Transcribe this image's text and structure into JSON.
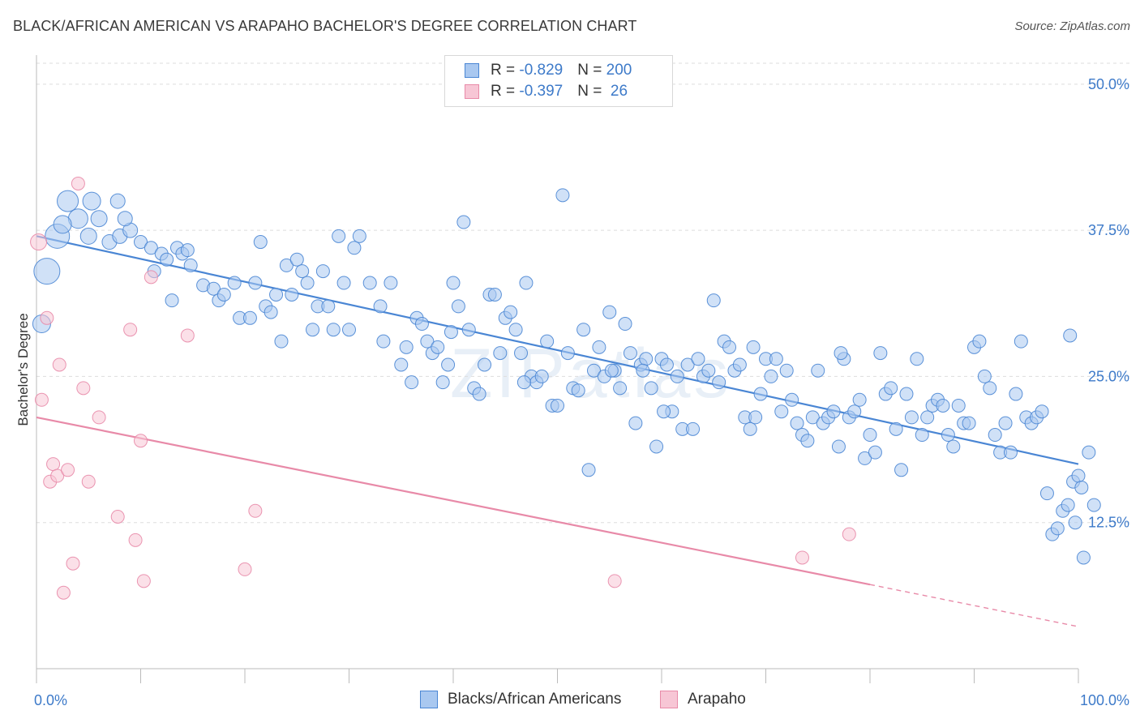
{
  "title": "BLACK/AFRICAN AMERICAN VS ARAPAHO BACHELOR'S DEGREE CORRELATION CHART",
  "source": "Source: ZipAtlas.com",
  "watermark": {
    "a": "ZIP",
    "b": "atlas"
  },
  "legend": {
    "rows": [
      {
        "r_label": "R = ",
        "r_value": "-0.829",
        "n_label": "N = ",
        "n_value": "200",
        "color": "#4a86d4",
        "fill": "#a9c8f0"
      },
      {
        "r_label": "R = ",
        "r_value": "-0.397",
        "n_label": "N = ",
        "n_value": " 26",
        "color": "#e88aa8",
        "fill": "#f7c6d5"
      }
    ]
  },
  "bottom_legend": [
    "Blacks/African Americans",
    "Arapaho"
  ],
  "chart_data": {
    "type": "scatter",
    "title": "BLACK/AFRICAN AMERICAN VS ARAPAHO BACHELOR'S DEGREE CORRELATION CHART",
    "xlabel": "",
    "ylabel": "Bachelor's Degree",
    "xlim": [
      0,
      100
    ],
    "ylim": [
      0,
      52
    ],
    "x_tick_labels": [
      "0.0%",
      "100.0%"
    ],
    "y_ticks": [
      12.5,
      25.0,
      37.5,
      50.0
    ],
    "y_tick_labels": [
      "12.5%",
      "25.0%",
      "37.5%",
      "50.0%"
    ],
    "series": [
      {
        "name": "Blacks/African Americans",
        "color": "#4a86d4",
        "fill": "#a9c8f0",
        "trend": {
          "x0": 0,
          "y0": 37.0,
          "x1": 100,
          "y1": 17.5
        },
        "points": [
          [
            1,
            34,
            16
          ],
          [
            2,
            37,
            15
          ],
          [
            3,
            40,
            13
          ],
          [
            4,
            38.5,
            12
          ],
          [
            5,
            37,
            10
          ],
          [
            6,
            38.5,
            10
          ],
          [
            7,
            36.5,
            9
          ],
          [
            8,
            37,
            9
          ],
          [
            9,
            37.5,
            9
          ],
          [
            10,
            36.5,
            8
          ],
          [
            0.5,
            29.5,
            11
          ],
          [
            2.5,
            38,
            11
          ],
          [
            5.3,
            40,
            11
          ],
          [
            7.8,
            40,
            9
          ],
          [
            8.5,
            38.5,
            9
          ],
          [
            11,
            36,
            8
          ],
          [
            11.3,
            34,
            8
          ],
          [
            12,
            35.5,
            8
          ],
          [
            12.5,
            35,
            8
          ],
          [
            13,
            31.5,
            8
          ],
          [
            13.5,
            36,
            8
          ],
          [
            14,
            35.5,
            8
          ],
          [
            14.5,
            35.8,
            8
          ],
          [
            16,
            32.8,
            8
          ],
          [
            17,
            32.5,
            8
          ],
          [
            14.8,
            34.5,
            8
          ],
          [
            17.5,
            31.5,
            8
          ],
          [
            18,
            32,
            8
          ],
          [
            19,
            33,
            8
          ],
          [
            19.5,
            30,
            8
          ],
          [
            20.5,
            30,
            8
          ],
          [
            21,
            33,
            8
          ],
          [
            21.5,
            36.5,
            8
          ],
          [
            22,
            31,
            8
          ],
          [
            22.5,
            30.5,
            8
          ],
          [
            23,
            32,
            8
          ],
          [
            23.5,
            28,
            8
          ],
          [
            24,
            34.5,
            8
          ],
          [
            24.5,
            32,
            8
          ],
          [
            25,
            35,
            8
          ],
          [
            25.5,
            34,
            8
          ],
          [
            26,
            33,
            8
          ],
          [
            26.5,
            29,
            8
          ],
          [
            27,
            31,
            8
          ],
          [
            27.5,
            34,
            8
          ],
          [
            28,
            31,
            8
          ],
          [
            28.5,
            29,
            8
          ],
          [
            29,
            37,
            8
          ],
          [
            29.5,
            33,
            8
          ],
          [
            30,
            29,
            8
          ],
          [
            30.5,
            36,
            8
          ],
          [
            31,
            37,
            8
          ],
          [
            32,
            33,
            8
          ],
          [
            33,
            31,
            8
          ],
          [
            34,
            33,
            8
          ],
          [
            35,
            26,
            8
          ],
          [
            35.5,
            27.5,
            8
          ],
          [
            36,
            24.5,
            8
          ],
          [
            36.5,
            30,
            8
          ],
          [
            37,
            29.5,
            8
          ],
          [
            37.5,
            28,
            8
          ],
          [
            38,
            27,
            8
          ],
          [
            38.5,
            27.5,
            8
          ],
          [
            39,
            24.5,
            8
          ],
          [
            39.5,
            26,
            8
          ],
          [
            40,
            33,
            8
          ],
          [
            40.5,
            31,
            8
          ],
          [
            41,
            38.2,
            8
          ],
          [
            41.5,
            29,
            8
          ],
          [
            42,
            24,
            8
          ],
          [
            42.5,
            23.5,
            8
          ],
          [
            43,
            26,
            8
          ],
          [
            43.5,
            32,
            8
          ],
          [
            44,
            32,
            8
          ],
          [
            44.5,
            27,
            8
          ],
          [
            45,
            30,
            8
          ],
          [
            45.5,
            30.5,
            8
          ],
          [
            46,
            29,
            8
          ],
          [
            46.5,
            27,
            8
          ],
          [
            47,
            33,
            8
          ],
          [
            47.5,
            25,
            8
          ],
          [
            48,
            24.5,
            8
          ],
          [
            48.5,
            25,
            8
          ],
          [
            49,
            28,
            8
          ],
          [
            49.5,
            22.5,
            8
          ],
          [
            50,
            22.5,
            8
          ],
          [
            50.5,
            40.5,
            8
          ],
          [
            51,
            27,
            8
          ],
          [
            51.5,
            24,
            8
          ],
          [
            52,
            23.8,
            8
          ],
          [
            52.5,
            29,
            8
          ],
          [
            53,
            17,
            8
          ],
          [
            53.5,
            25.5,
            8
          ],
          [
            54,
            27.5,
            8
          ],
          [
            54.5,
            25,
            8
          ],
          [
            55,
            30.5,
            8
          ],
          [
            55.5,
            25.5,
            8
          ],
          [
            56,
            24,
            8
          ],
          [
            56.5,
            29.5,
            8
          ],
          [
            57,
            27,
            8
          ],
          [
            57.5,
            21,
            8
          ],
          [
            58,
            26,
            8
          ],
          [
            58.5,
            26.5,
            8
          ],
          [
            59,
            24,
            8
          ],
          [
            59.5,
            19,
            8
          ],
          [
            60,
            26.5,
            8
          ],
          [
            60.5,
            26,
            8
          ],
          [
            61,
            22,
            8
          ],
          [
            61.5,
            25,
            8
          ],
          [
            62,
            20.5,
            8
          ],
          [
            62.5,
            26,
            8
          ],
          [
            63,
            20.5,
            8
          ],
          [
            63.5,
            26.5,
            8
          ],
          [
            64,
            25,
            8
          ],
          [
            64.5,
            25.5,
            8
          ],
          [
            65,
            31.5,
            8
          ],
          [
            65.5,
            24.5,
            8
          ],
          [
            66,
            28,
            8
          ],
          [
            66.5,
            27.5,
            8
          ],
          [
            67,
            25.5,
            8
          ],
          [
            67.5,
            26,
            8
          ],
          [
            68,
            21.5,
            8
          ],
          [
            68.5,
            20.5,
            8
          ],
          [
            69,
            21.5,
            8
          ],
          [
            69.5,
            23.5,
            8
          ],
          [
            70,
            26.5,
            8
          ],
          [
            70.5,
            25,
            8
          ],
          [
            71,
            26.5,
            8
          ],
          [
            71.5,
            22,
            8
          ],
          [
            72,
            25.5,
            8
          ],
          [
            72.5,
            23,
            8
          ],
          [
            73,
            21,
            8
          ],
          [
            73.5,
            20,
            8
          ],
          [
            74,
            19.5,
            8
          ],
          [
            74.5,
            21.5,
            8
          ],
          [
            75,
            25.5,
            8
          ],
          [
            75.5,
            21,
            8
          ],
          [
            76,
            21.5,
            8
          ],
          [
            76.5,
            22,
            8
          ],
          [
            77,
            19,
            8
          ],
          [
            77.5,
            26.5,
            8
          ],
          [
            78,
            21.5,
            8
          ],
          [
            78.5,
            22,
            8
          ],
          [
            79,
            23,
            8
          ],
          [
            79.5,
            18,
            8
          ],
          [
            80,
            20,
            8
          ],
          [
            80.5,
            18.5,
            8
          ],
          [
            81,
            27,
            8
          ],
          [
            81.5,
            23.5,
            8
          ],
          [
            82,
            24,
            8
          ],
          [
            82.5,
            20.5,
            8
          ],
          [
            83,
            17,
            8
          ],
          [
            83.5,
            23.5,
            8
          ],
          [
            84,
            21.5,
            8
          ],
          [
            84.5,
            26.5,
            8
          ],
          [
            85,
            20,
            8
          ],
          [
            85.5,
            21.5,
            8
          ],
          [
            86,
            22.5,
            8
          ],
          [
            86.5,
            23,
            8
          ],
          [
            87,
            22.5,
            8
          ],
          [
            87.5,
            20,
            8
          ],
          [
            88,
            19,
            8
          ],
          [
            88.5,
            22.5,
            8
          ],
          [
            89,
            21,
            8
          ],
          [
            89.5,
            21,
            8
          ],
          [
            90,
            27.5,
            8
          ],
          [
            90.5,
            28,
            8
          ],
          [
            91,
            25,
            8
          ],
          [
            91.5,
            24,
            8
          ],
          [
            92,
            20,
            8
          ],
          [
            92.5,
            18.5,
            8
          ],
          [
            93,
            21,
            8
          ],
          [
            93.5,
            18.5,
            8
          ],
          [
            94,
            23.5,
            8
          ],
          [
            94.5,
            28,
            8
          ],
          [
            95,
            21.5,
            8
          ],
          [
            95.5,
            21,
            8
          ],
          [
            96,
            21.5,
            8
          ],
          [
            96.5,
            22,
            8
          ],
          [
            97,
            15,
            8
          ],
          [
            97.5,
            11.5,
            8
          ],
          [
            98,
            12,
            8
          ],
          [
            98.5,
            13.5,
            8
          ],
          [
            99,
            14,
            8
          ],
          [
            99.2,
            28.5,
            8
          ],
          [
            99.5,
            16,
            8
          ],
          [
            99.7,
            12.5,
            8
          ],
          [
            100,
            16.5,
            8
          ],
          [
            100.3,
            15.5,
            8
          ],
          [
            100.5,
            9.5,
            8
          ],
          [
            101,
            18.5,
            8
          ],
          [
            101.5,
            14,
            8
          ],
          [
            77.2,
            27,
            8
          ],
          [
            55.2,
            25.5,
            8
          ],
          [
            33.3,
            28,
            8
          ],
          [
            46.8,
            24.5,
            8
          ],
          [
            39.8,
            28.8,
            8
          ],
          [
            68.8,
            27.5,
            8
          ],
          [
            60.2,
            22,
            8
          ],
          [
            58.2,
            25.5,
            8
          ]
        ]
      },
      {
        "name": "Arapaho",
        "color": "#e88aa8",
        "fill": "#f7c6d5",
        "trend": {
          "x0": 0,
          "y0": 21.5,
          "x1": 80,
          "y1": 7.2,
          "dash_x1": 100,
          "dash_y1": 3.6
        },
        "points": [
          [
            0.2,
            36.5,
            10
          ],
          [
            0.5,
            23,
            8
          ],
          [
            1,
            30,
            8
          ],
          [
            1.3,
            16,
            8
          ],
          [
            1.6,
            17.5,
            8
          ],
          [
            2,
            16.5,
            8
          ],
          [
            2.2,
            26,
            8
          ],
          [
            2.6,
            6.5,
            8
          ],
          [
            3,
            17,
            8
          ],
          [
            3.5,
            9,
            8
          ],
          [
            4,
            41.5,
            8
          ],
          [
            4.5,
            24,
            8
          ],
          [
            5,
            16,
            8
          ],
          [
            6,
            21.5,
            8
          ],
          [
            7.8,
            13,
            8
          ],
          [
            9,
            29,
            8
          ],
          [
            9.5,
            11,
            8
          ],
          [
            10,
            19.5,
            8
          ],
          [
            10.3,
            7.5,
            8
          ],
          [
            11,
            33.5,
            8
          ],
          [
            14.5,
            28.5,
            8
          ],
          [
            20,
            8.5,
            8
          ],
          [
            21,
            13.5,
            8
          ],
          [
            55.5,
            7.5,
            8
          ],
          [
            73.5,
            9.5,
            8
          ],
          [
            78,
            11.5,
            8
          ]
        ]
      }
    ]
  }
}
